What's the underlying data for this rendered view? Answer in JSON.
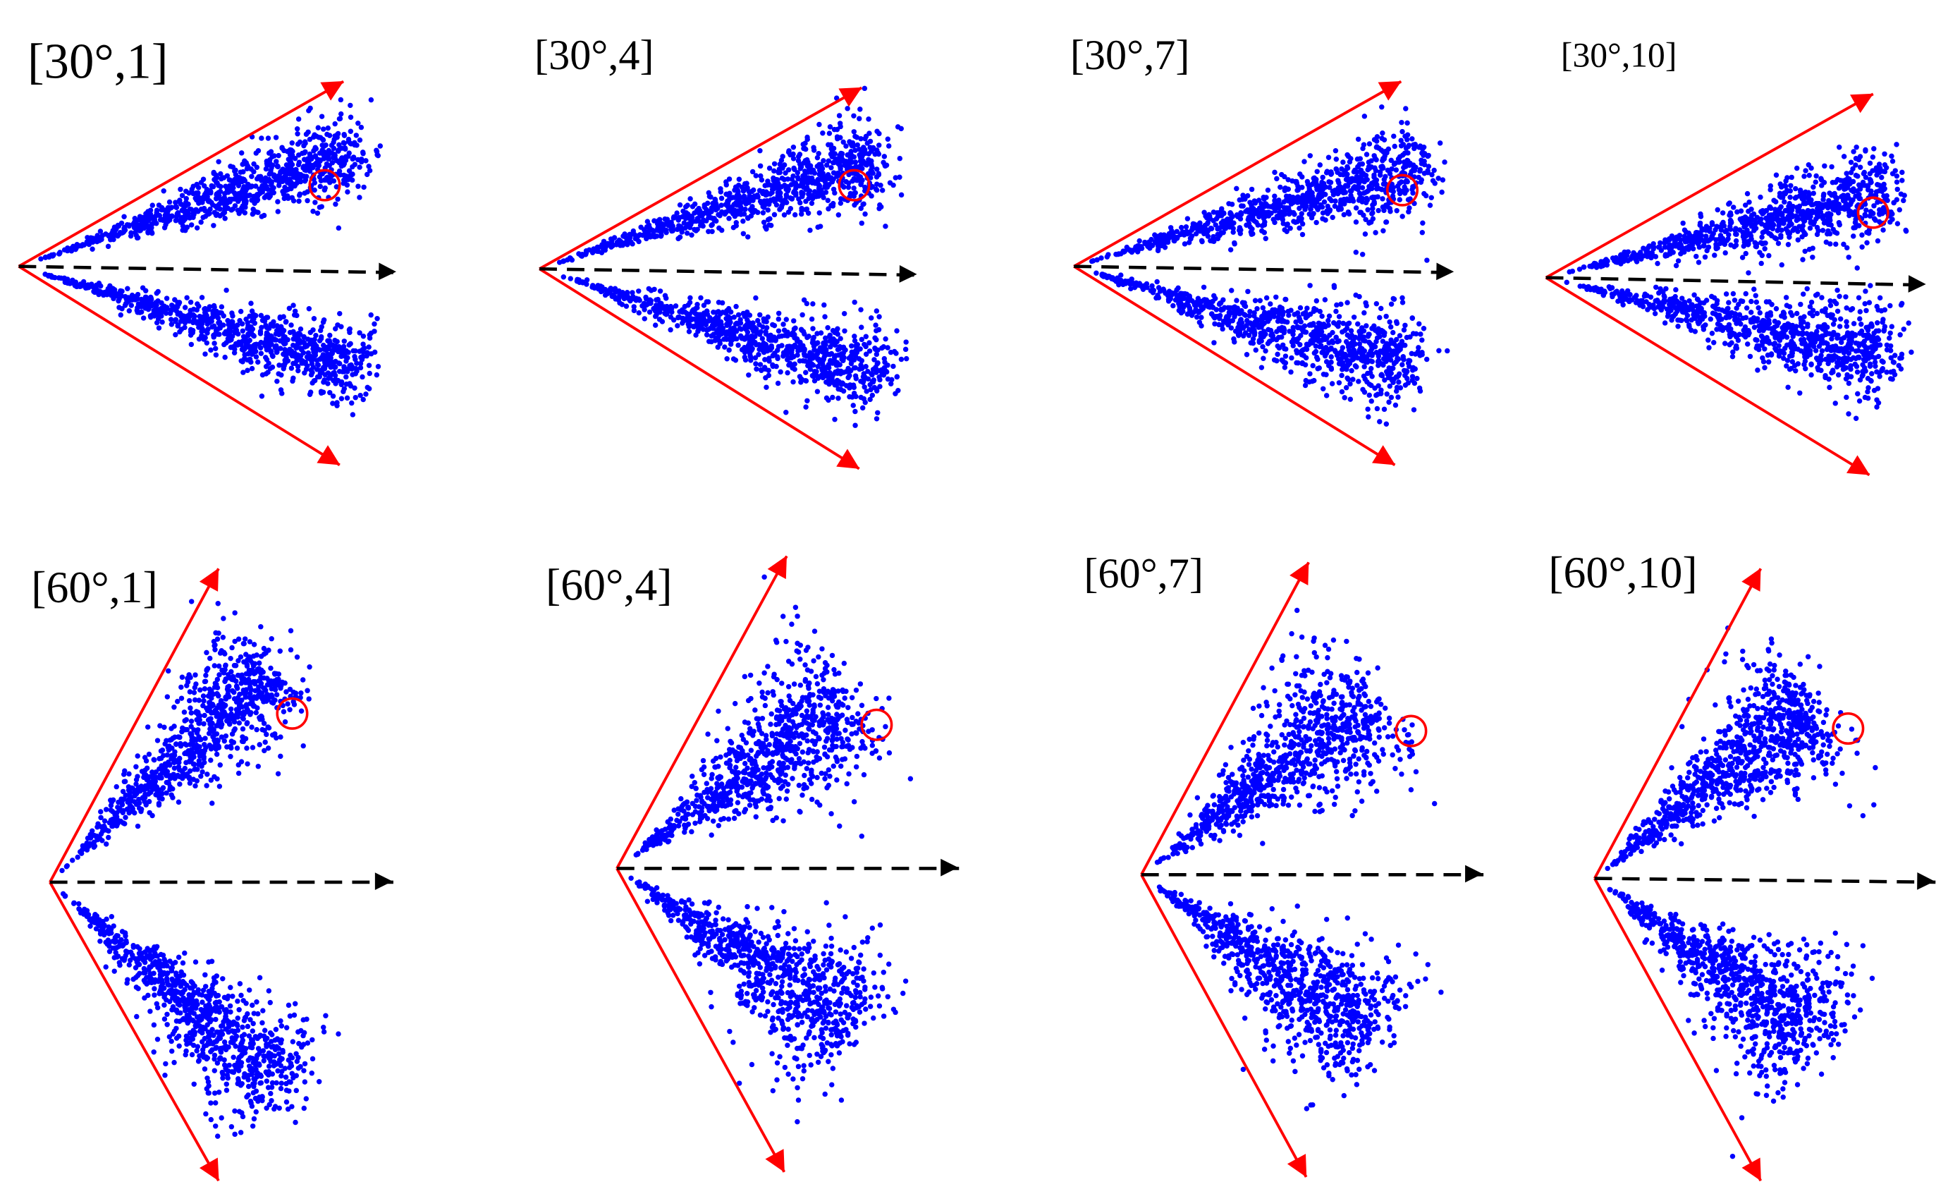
{
  "panels": [
    {
      "label": "[30°,1]"
    },
    {
      "label": "[30°,4]"
    },
    {
      "label": "[30°,7]"
    },
    {
      "label": "[30°,10]"
    },
    {
      "label": "[60°,1]"
    },
    {
      "label": "[60°,4]"
    },
    {
      "label": "[60°,7]"
    },
    {
      "label": "[60°,10]"
    }
  ]
}
